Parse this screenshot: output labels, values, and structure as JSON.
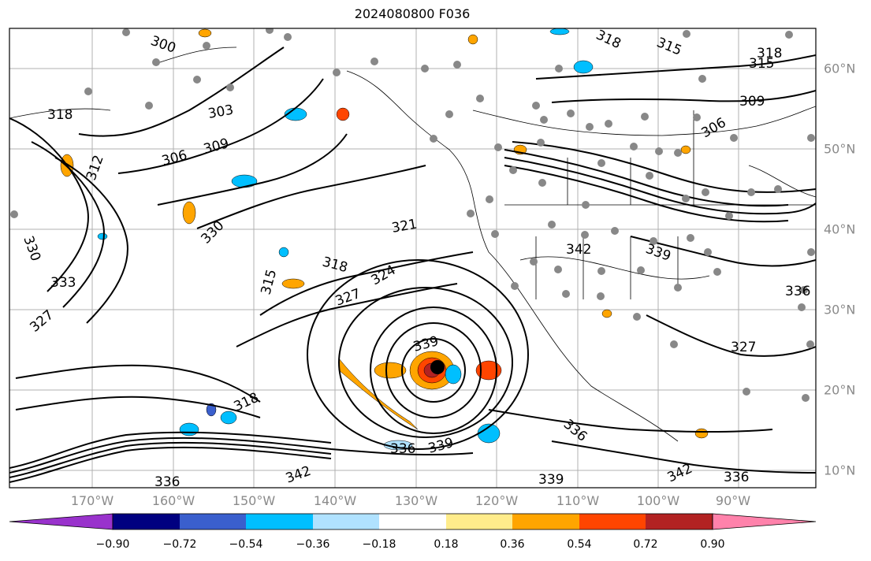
{
  "title": "2024080800 F036",
  "map": {
    "lon_labels": [
      "170°W",
      "160°W",
      "150°W",
      "140°W",
      "130°W",
      "120°W",
      "110°W",
      "100°W",
      "90°W"
    ],
    "lat_labels": [
      "60°N",
      "50°N",
      "40°N",
      "30°N",
      "20°N",
      "10°N"
    ],
    "contour_labels": [
      "300",
      "318",
      "303",
      "306",
      "309",
      "312",
      "315",
      "318",
      "321",
      "324",
      "327",
      "330",
      "333",
      "336",
      "339",
      "342"
    ],
    "contour_label_instances": [
      {
        "text": "300"
      },
      {
        "text": "318"
      },
      {
        "text": "315"
      },
      {
        "text": "318"
      },
      {
        "text": "315"
      },
      {
        "text": "318"
      },
      {
        "text": "303"
      },
      {
        "text": "309"
      },
      {
        "text": "306"
      },
      {
        "text": "306"
      },
      {
        "text": "309"
      },
      {
        "text": "312"
      },
      {
        "text": "330"
      },
      {
        "text": "321"
      },
      {
        "text": "318"
      },
      {
        "text": "324"
      },
      {
        "text": "327"
      },
      {
        "text": "333"
      },
      {
        "text": "327"
      },
      {
        "text": "330"
      },
      {
        "text": "342"
      },
      {
        "text": "339"
      },
      {
        "text": "339"
      },
      {
        "text": "336"
      },
      {
        "text": "318"
      },
      {
        "text": "336"
      },
      {
        "text": "339"
      },
      {
        "text": "342"
      },
      {
        "text": "339"
      },
      {
        "text": "336"
      },
      {
        "text": "342"
      },
      {
        "text": "327"
      },
      {
        "text": "315"
      },
      {
        "text": "336"
      },
      {
        "text": "336"
      }
    ],
    "storm_marker": "tropical-cyclone-center"
  },
  "colorbar": {
    "ticks": [
      "−0.90",
      "−0.72",
      "−0.54",
      "−0.36",
      "−0.18",
      "0.18",
      "0.36",
      "0.54",
      "0.72",
      "0.90"
    ],
    "colors": [
      "#9932CC",
      "#000080",
      "#3A5FCD",
      "#00BFFF",
      "#B0E2FF",
      "#FFFFFF",
      "#FFEC8B",
      "#FFA500",
      "#FF4500",
      "#B22222",
      "#FF82AB"
    ]
  }
}
